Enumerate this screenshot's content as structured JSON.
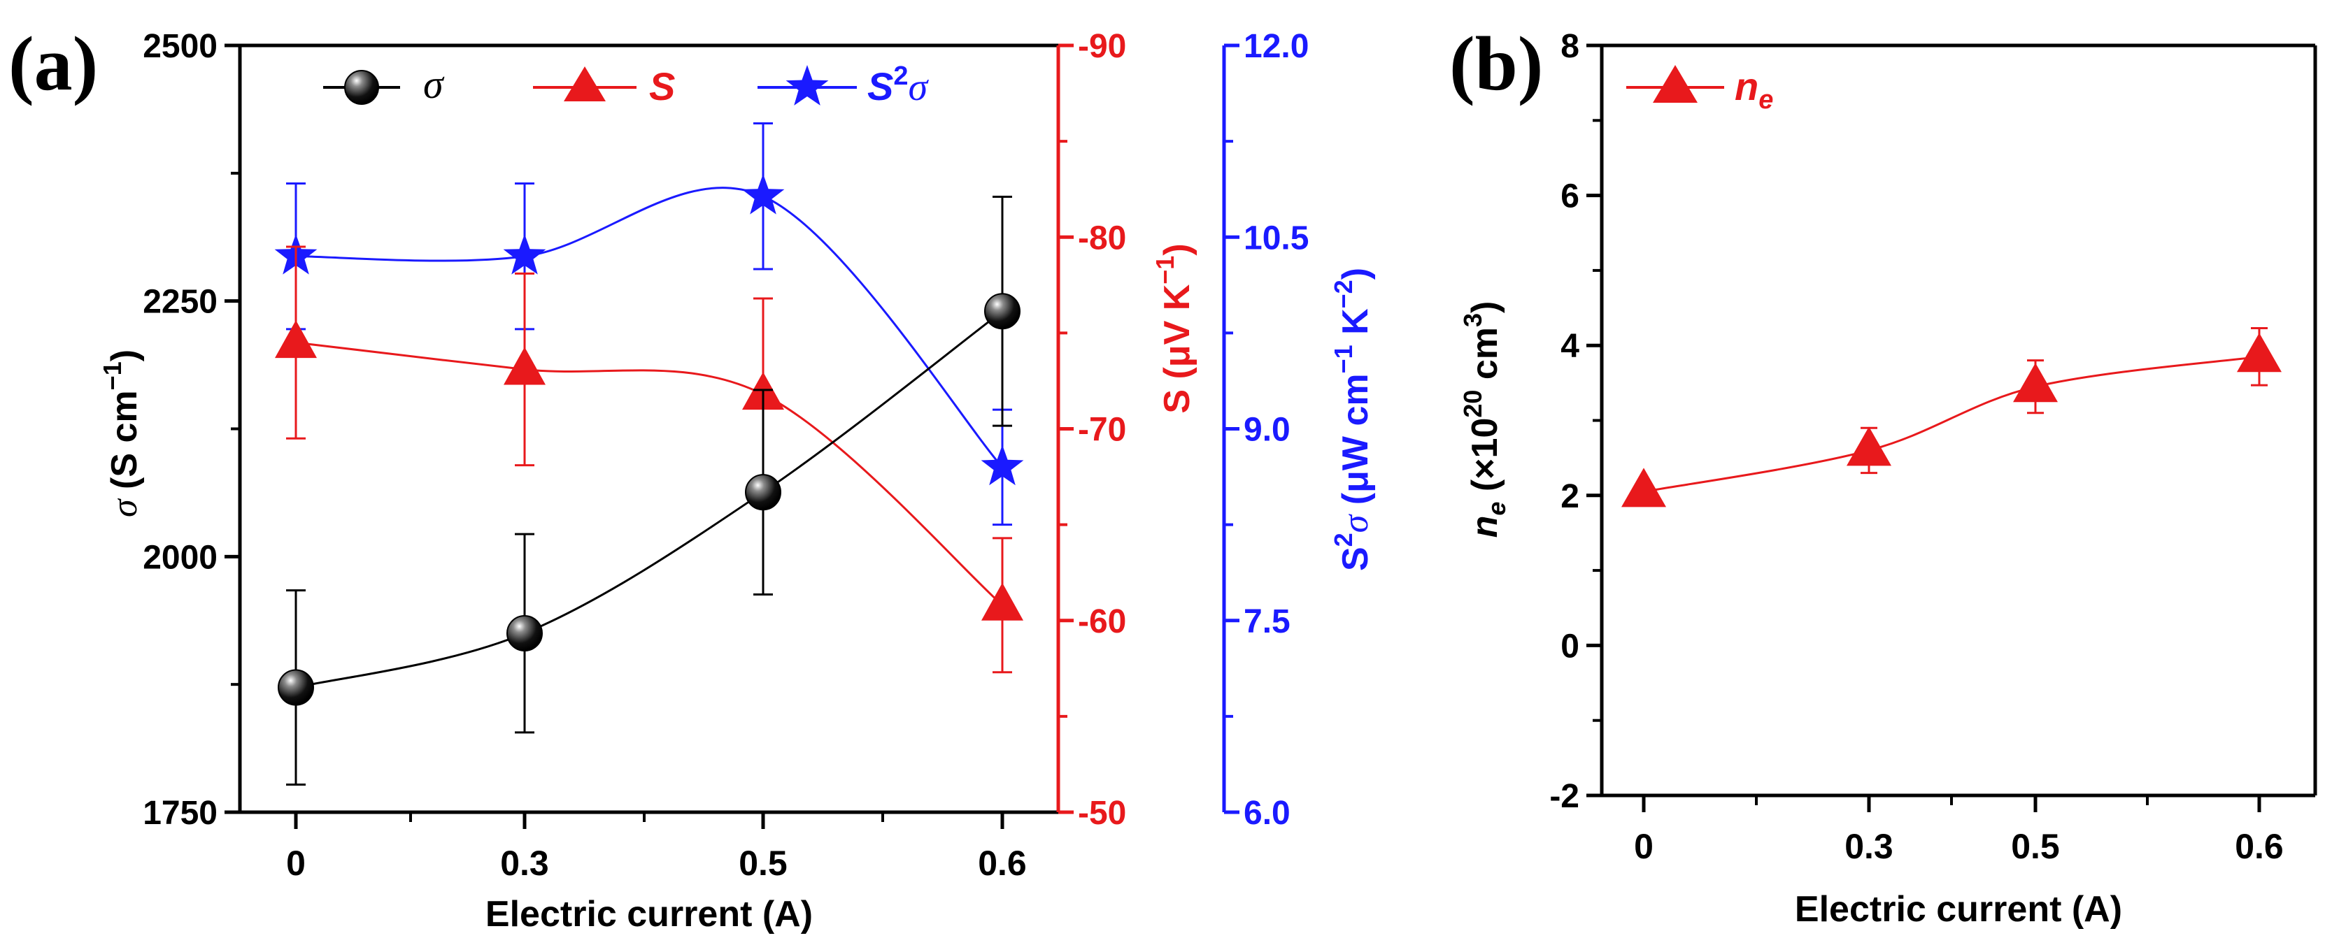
{
  "chart_data": [
    {
      "panel_label": "(a)",
      "type": "line",
      "xlabel": "Electric current (A)",
      "x_tick_labels": [
        "0",
        "0.3",
        "0.5",
        "0.6"
      ],
      "categories": [
        "0",
        "0.3",
        "0.5",
        "0.6"
      ],
      "grid": false,
      "legend_position": "top",
      "axes": {
        "left": {
          "label_sym": "σ",
          "label_rest": " (S cm",
          "label_sup": "−1",
          "label_end": ")",
          "ylim": [
            1750,
            2500
          ],
          "ticks": [
            1750,
            2000,
            2250,
            2500
          ],
          "tick_labels": [
            "1750",
            "2000",
            "2250",
            "2500"
          ],
          "color": "#000000"
        },
        "right1": {
          "label_sym": "S",
          "label_rest": " (μV K",
          "label_sup": "−1",
          "label_end": ")",
          "ylim": [
            -50,
            -90
          ],
          "ticks": [
            -50,
            -60,
            -70,
            -80,
            -90
          ],
          "tick_labels": [
            "-50",
            "-60",
            "-70",
            "-80",
            "-90"
          ],
          "color": "#e8191c"
        },
        "right2": {
          "label_sym": "S",
          "label_sup1": "2",
          "label_sym2": "σ",
          "label_rest": " (μW cm",
          "label_sup": "−1",
          "label_rest2": " K",
          "label_sup2": "−2",
          "label_end": ")",
          "ylim": [
            6.0,
            12.0
          ],
          "ticks": [
            6.0,
            7.5,
            9.0,
            10.5,
            12.0
          ],
          "tick_labels": [
            "6.0",
            "7.5",
            "9.0",
            "10.5",
            "12.0"
          ],
          "color": "#1a1aff"
        }
      },
      "series": [
        {
          "name": "σ",
          "axis": "left",
          "color": "#000000",
          "marker": "sphere",
          "values": [
            1872,
            1925,
            2063,
            2240
          ],
          "errors": [
            95,
            97,
            100,
            112
          ]
        },
        {
          "name": "S",
          "axis": "right1",
          "color": "#e8191c",
          "marker": "triangle",
          "values": [
            -74.5,
            -73.1,
            -71.8,
            -60.8
          ],
          "errors": [
            5.0,
            5.0,
            5.0,
            3.5
          ]
        },
        {
          "name": "S²σ",
          "name_sym": "S",
          "name_sup": "2",
          "name_sym2": "σ",
          "axis": "right2",
          "color": "#1a1aff",
          "marker": "star",
          "values": [
            10.35,
            10.35,
            10.82,
            8.7
          ],
          "errors": [
            0.57,
            0.57,
            0.57,
            0.45
          ]
        }
      ]
    },
    {
      "panel_label": "(b)",
      "type": "line",
      "xlabel": "Electric current (A)",
      "x_tick_labels": [
        "0",
        "0.3",
        "0.5",
        "0.6"
      ],
      "categories": [
        "0",
        "0.3",
        "0.5",
        "0.6"
      ],
      "grid": false,
      "legend_position": "top-left",
      "ylabel_sym": "n",
      "ylabel_sub": "e",
      "ylabel_rest": " (×10",
      "ylabel_sup": "20",
      "ylabel_rest2": " cm",
      "ylabel_sup2": "3",
      "ylabel_end": ")",
      "ylim": [
        -2,
        8
      ],
      "y_ticks": [
        -2,
        0,
        2,
        4,
        6,
        8
      ],
      "y_tick_labels": [
        "-2",
        "0",
        "2",
        "4",
        "6",
        "8"
      ],
      "series": [
        {
          "name": "ne",
          "name_sym": "n",
          "name_sub": "e",
          "color": "#e8191c",
          "marker": "triangle",
          "values": [
            2.05,
            2.6,
            3.45,
            3.85
          ],
          "errors": [
            0.05,
            0.3,
            0.35,
            0.38
          ]
        }
      ]
    }
  ]
}
